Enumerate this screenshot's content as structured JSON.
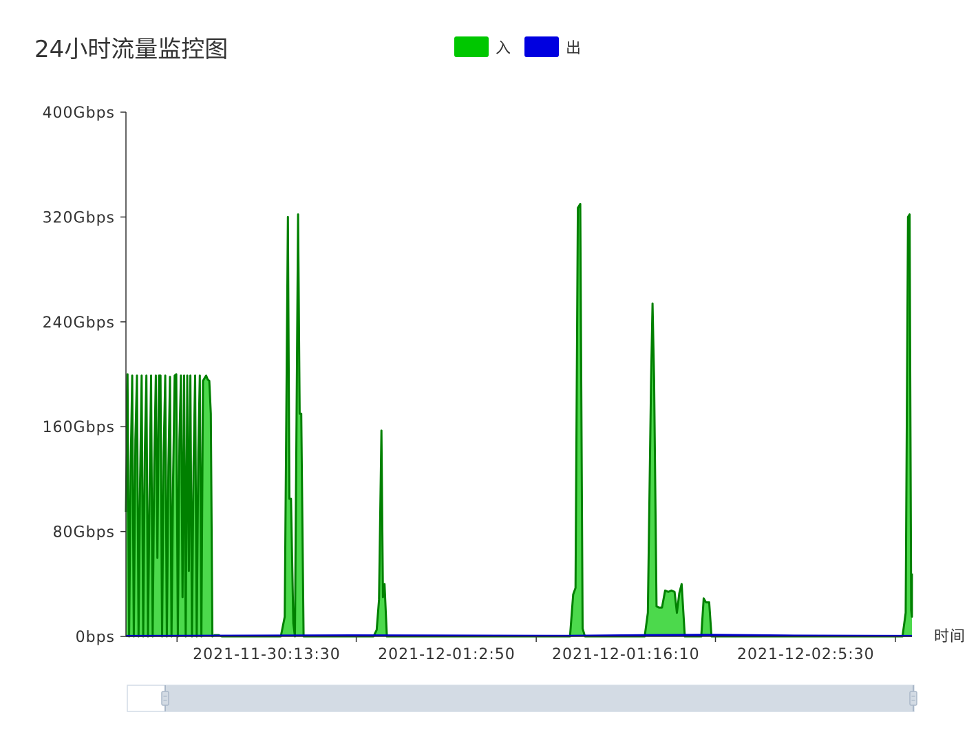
{
  "chart_data": {
    "type": "area",
    "title": "24小时流量监控图",
    "xlabel": "时间",
    "ylabel": "",
    "ylim": [
      0,
      400
    ],
    "y_unit": "Gbps",
    "y_ticks": [
      "0bps",
      "80Gbps",
      "160Gbps",
      "240Gbps",
      "320Gbps",
      "400Gbps"
    ],
    "y_tick_values": [
      0,
      80,
      160,
      240,
      320,
      400
    ],
    "x_ticks": [
      "2021-11-30:13:30",
      "2021-12-01:2:50",
      "2021-12-01:16:10",
      "2021-12-02:5:30"
    ],
    "x_tick_positions": [
      0.065,
      0.293,
      0.522,
      0.75,
      0.979
    ],
    "x_label_positions": [
      0.179,
      0.408,
      0.636,
      0.865
    ],
    "legend": "top-center",
    "grid": false,
    "series": [
      {
        "name": "入",
        "color": "#00c700",
        "line_color": "#008000",
        "fill_color": "#4cd94c",
        "points": [
          [
            0.0,
            95
          ],
          [
            0.002,
            200
          ],
          [
            0.004,
            0
          ],
          [
            0.006,
            130
          ],
          [
            0.008,
            199
          ],
          [
            0.01,
            0
          ],
          [
            0.012,
            150
          ],
          [
            0.014,
            199
          ],
          [
            0.016,
            0
          ],
          [
            0.018,
            120
          ],
          [
            0.02,
            199
          ],
          [
            0.022,
            0
          ],
          [
            0.024,
            140
          ],
          [
            0.026,
            199
          ],
          [
            0.028,
            0
          ],
          [
            0.03,
            110
          ],
          [
            0.032,
            199
          ],
          [
            0.034,
            0
          ],
          [
            0.036,
            130
          ],
          [
            0.038,
            199
          ],
          [
            0.04,
            60
          ],
          [
            0.042,
            199
          ],
          [
            0.044,
            199
          ],
          [
            0.046,
            0
          ],
          [
            0.048,
            140
          ],
          [
            0.05,
            199
          ],
          [
            0.052,
            0
          ],
          [
            0.054,
            130
          ],
          [
            0.056,
            198
          ],
          [
            0.058,
            0
          ],
          [
            0.06,
            120
          ],
          [
            0.062,
            199
          ],
          [
            0.064,
            200
          ],
          [
            0.066,
            0
          ],
          [
            0.068,
            150
          ],
          [
            0.07,
            199
          ],
          [
            0.072,
            30
          ],
          [
            0.074,
            199
          ],
          [
            0.076,
            0
          ],
          [
            0.078,
            199
          ],
          [
            0.08,
            50
          ],
          [
            0.082,
            199
          ],
          [
            0.084,
            0
          ],
          [
            0.086,
            130
          ],
          [
            0.088,
            199
          ],
          [
            0.09,
            0
          ],
          [
            0.092,
            140
          ],
          [
            0.094,
            199
          ],
          [
            0.096,
            0
          ],
          [
            0.098,
            195
          ],
          [
            0.1,
            197
          ],
          [
            0.102,
            199
          ],
          [
            0.104,
            196
          ],
          [
            0.106,
            195
          ],
          [
            0.108,
            170
          ],
          [
            0.11,
            0
          ],
          [
            0.113,
            1
          ],
          [
            0.118,
            1
          ],
          [
            0.122,
            0
          ],
          [
            0.13,
            0
          ],
          [
            0.14,
            0
          ],
          [
            0.15,
            0
          ],
          [
            0.16,
            0
          ],
          [
            0.17,
            0
          ],
          [
            0.18,
            0
          ],
          [
            0.19,
            0
          ],
          [
            0.197,
            0
          ],
          [
            0.202,
            15
          ],
          [
            0.206,
            320
          ],
          [
            0.208,
            105
          ],
          [
            0.21,
            105
          ],
          [
            0.213,
            10
          ],
          [
            0.215,
            0
          ],
          [
            0.219,
            322
          ],
          [
            0.221,
            170
          ],
          [
            0.223,
            170
          ],
          [
            0.226,
            0
          ],
          [
            0.23,
            0
          ],
          [
            0.26,
            0
          ],
          [
            0.3,
            0
          ],
          [
            0.315,
            0
          ],
          [
            0.319,
            5
          ],
          [
            0.322,
            28
          ],
          [
            0.325,
            157
          ],
          [
            0.327,
            30
          ],
          [
            0.329,
            40
          ],
          [
            0.332,
            0
          ],
          [
            0.34,
            0
          ],
          [
            0.4,
            0
          ],
          [
            0.45,
            0
          ],
          [
            0.5,
            0
          ],
          [
            0.565,
            0
          ],
          [
            0.569,
            32
          ],
          [
            0.572,
            37
          ],
          [
            0.575,
            327
          ],
          [
            0.578,
            330
          ],
          [
            0.581,
            6
          ],
          [
            0.584,
            0
          ],
          [
            0.59,
            0
          ],
          [
            0.62,
            0
          ],
          [
            0.66,
            0
          ],
          [
            0.664,
            18
          ],
          [
            0.668,
            193
          ],
          [
            0.67,
            254
          ],
          [
            0.672,
            195
          ],
          [
            0.675,
            23
          ],
          [
            0.678,
            22
          ],
          [
            0.682,
            22
          ],
          [
            0.686,
            35
          ],
          [
            0.69,
            34
          ],
          [
            0.694,
            35
          ],
          [
            0.698,
            34
          ],
          [
            0.701,
            18
          ],
          [
            0.704,
            33
          ],
          [
            0.707,
            40
          ],
          [
            0.711,
            0
          ],
          [
            0.72,
            0
          ],
          [
            0.732,
            0
          ],
          [
            0.735,
            29
          ],
          [
            0.738,
            26
          ],
          [
            0.742,
            26
          ],
          [
            0.745,
            0
          ],
          [
            0.76,
            0
          ],
          [
            0.85,
            0
          ],
          [
            0.95,
            0
          ],
          [
            0.988,
            0
          ],
          [
            0.992,
            18
          ],
          [
            0.995,
            320
          ],
          [
            0.997,
            322
          ],
          [
            0.999,
            20
          ],
          [
            1.001,
            15
          ],
          [
            1.004,
            48
          ]
        ]
      },
      {
        "name": "出",
        "color": "#0000e0",
        "line_color": "#0000cc",
        "fill_color": "#0000e0",
        "points": [
          [
            0.0,
            0.3
          ],
          [
            0.13,
            0.5
          ],
          [
            0.29,
            0.8
          ],
          [
            0.56,
            0.4
          ],
          [
            0.67,
            1.0
          ],
          [
            0.75,
            1.2
          ],
          [
            0.85,
            0.6
          ],
          [
            1.0,
            0.3
          ]
        ]
      }
    ]
  }
}
